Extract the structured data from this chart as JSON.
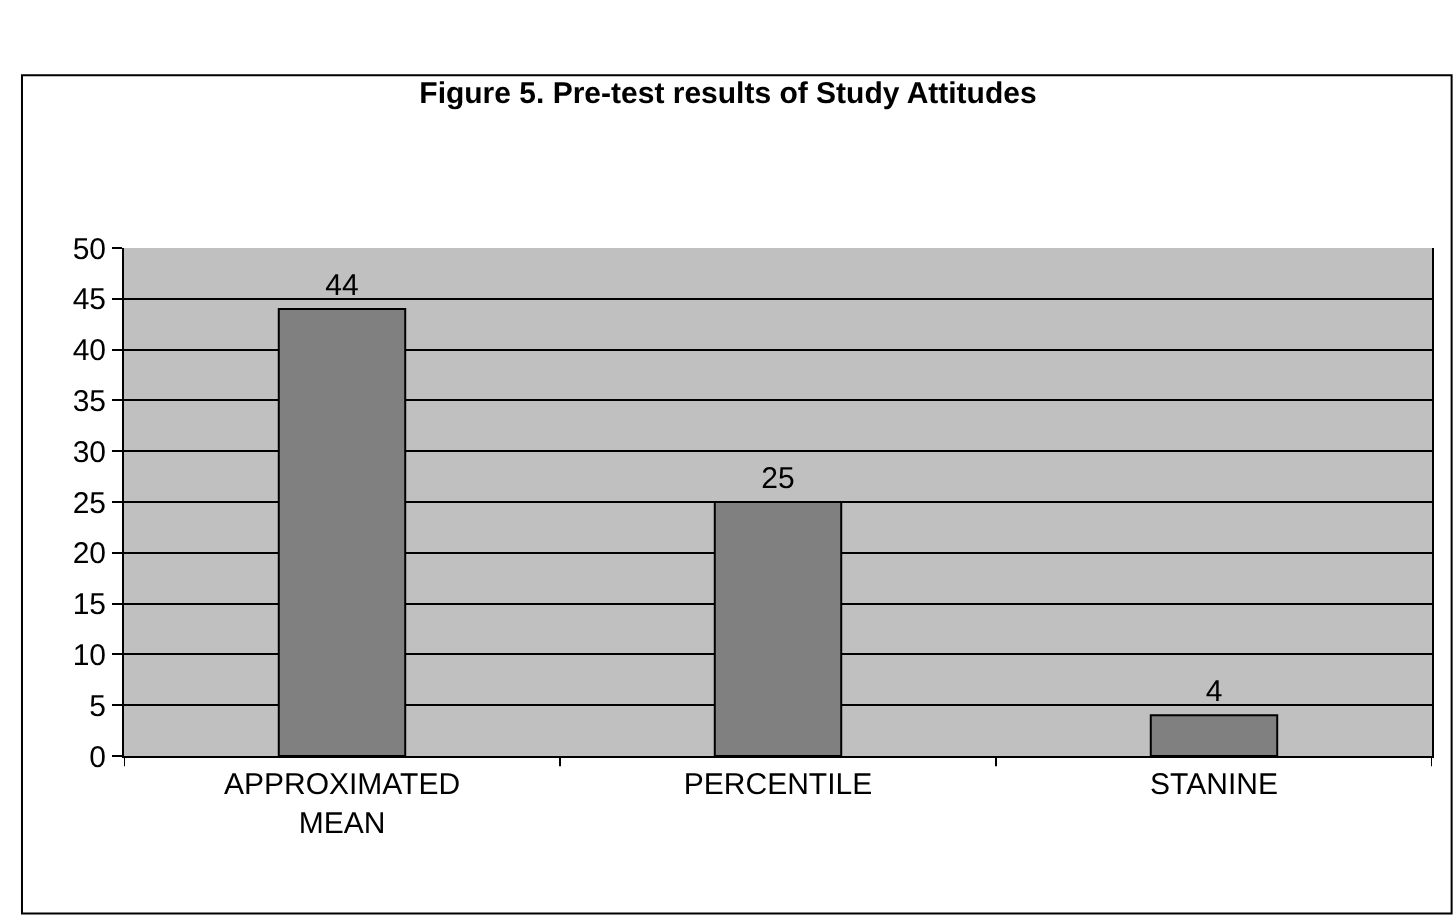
{
  "chart_data": {
    "type": "bar",
    "title": "Figure 5. Pre-test results of Study Attitudes",
    "categories": [
      "APPROXIMATED MEAN",
      "PERCENTILE",
      "STANINE"
    ],
    "values": [
      44,
      25,
      4
    ],
    "color": "#808080",
    "data_labels": true,
    "ylim": [
      0,
      50
    ],
    "yticks": [
      0,
      5,
      10,
      15,
      20,
      25,
      30,
      35,
      40,
      45,
      50
    ],
    "grid": "y",
    "legend": false
  }
}
